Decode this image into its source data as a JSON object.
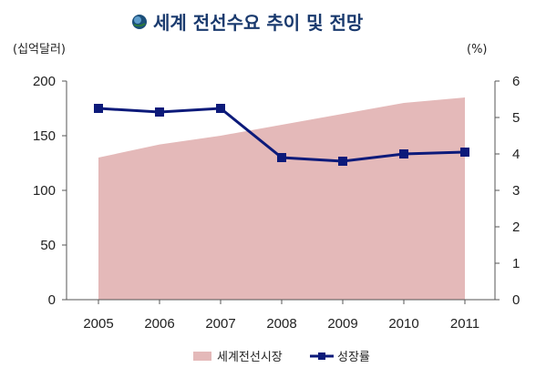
{
  "title": "세계 전선수요 추이 및 전망",
  "colors": {
    "area": "#e4b9b9",
    "line": "#0c1a7a",
    "axis": "#555555",
    "title": "#1a3a6e",
    "globe_dark": "#1b4f7a",
    "globe_light": "#6fb0e0"
  },
  "icons": {
    "title_icon": "globe-icon"
  },
  "chart_data": {
    "type": "area+line",
    "title": "세계 전선수요 추이 및 전망",
    "categories": [
      "2005",
      "2006",
      "2007",
      "2008",
      "2009",
      "2010",
      "2011"
    ],
    "left_axis": {
      "label": "(십억달러)",
      "ylim": [
        0,
        200
      ],
      "ticks": [
        "0",
        "50",
        "100",
        "150",
        "200"
      ]
    },
    "right_axis": {
      "label": "(%)",
      "ylim": [
        0,
        6
      ],
      "ticks": [
        "0",
        "1",
        "2",
        "3",
        "4",
        "5",
        "6"
      ]
    },
    "series": [
      {
        "name": "세계전선시장",
        "kind": "area",
        "axis": "left",
        "values": [
          130,
          142,
          150,
          160,
          170,
          180,
          185
        ]
      },
      {
        "name": "성장률",
        "kind": "line",
        "axis": "right",
        "values": [
          5.25,
          5.15,
          5.25,
          3.9,
          3.8,
          4.0,
          4.05
        ]
      }
    ],
    "legend_position": "bottom",
    "grid": false
  }
}
